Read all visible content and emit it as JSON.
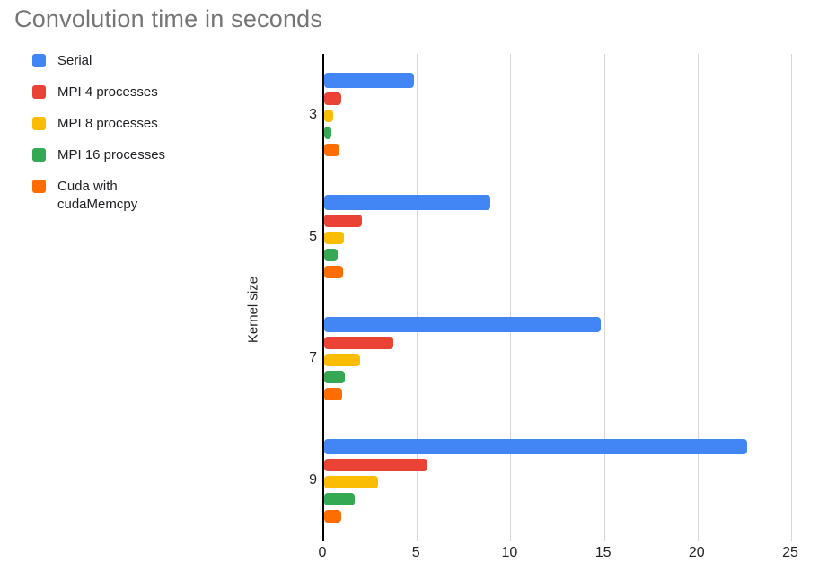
{
  "title": "Convolution time in seconds",
  "legend": {
    "items": [
      "Serial",
      "MPI 4 processes",
      "MPI 8 processes",
      "MPI 16 processes",
      "Cuda with\ncudaMemcpy"
    ]
  },
  "styles": {
    "title_color": "#757575",
    "grid_color": "#d6d6d6",
    "axis_color": "#000000",
    "text_color": "#202124"
  },
  "chart_data": {
    "type": "bar",
    "orientation": "horizontal",
    "title": "Convolution time in seconds",
    "xlabel": "",
    "ylabel": "Kernel size",
    "categories": [
      "3",
      "5",
      "7",
      "9"
    ],
    "series": [
      {
        "name": "Serial",
        "color": "#4285F4",
        "values": [
          4.8,
          8.9,
          14.8,
          22.6
        ]
      },
      {
        "name": "MPI 4 processes",
        "color": "#EA4335",
        "values": [
          0.9,
          2.0,
          3.7,
          5.5
        ]
      },
      {
        "name": "MPI 8 processes",
        "color": "#FBBC04",
        "values": [
          0.5,
          1.05,
          1.9,
          2.9
        ]
      },
      {
        "name": "MPI 16 processes",
        "color": "#34A853",
        "values": [
          0.4,
          0.7,
          1.1,
          1.65
        ]
      },
      {
        "name": "Cuda with cudaMemcpy",
        "color": "#FF6D01",
        "values": [
          0.8,
          1.0,
          0.95,
          0.9
        ]
      }
    ],
    "xlim": [
      0,
      25
    ],
    "x_ticks": [
      0,
      5,
      10,
      15,
      20,
      25
    ],
    "grid": true,
    "legend_position": "top-left"
  }
}
